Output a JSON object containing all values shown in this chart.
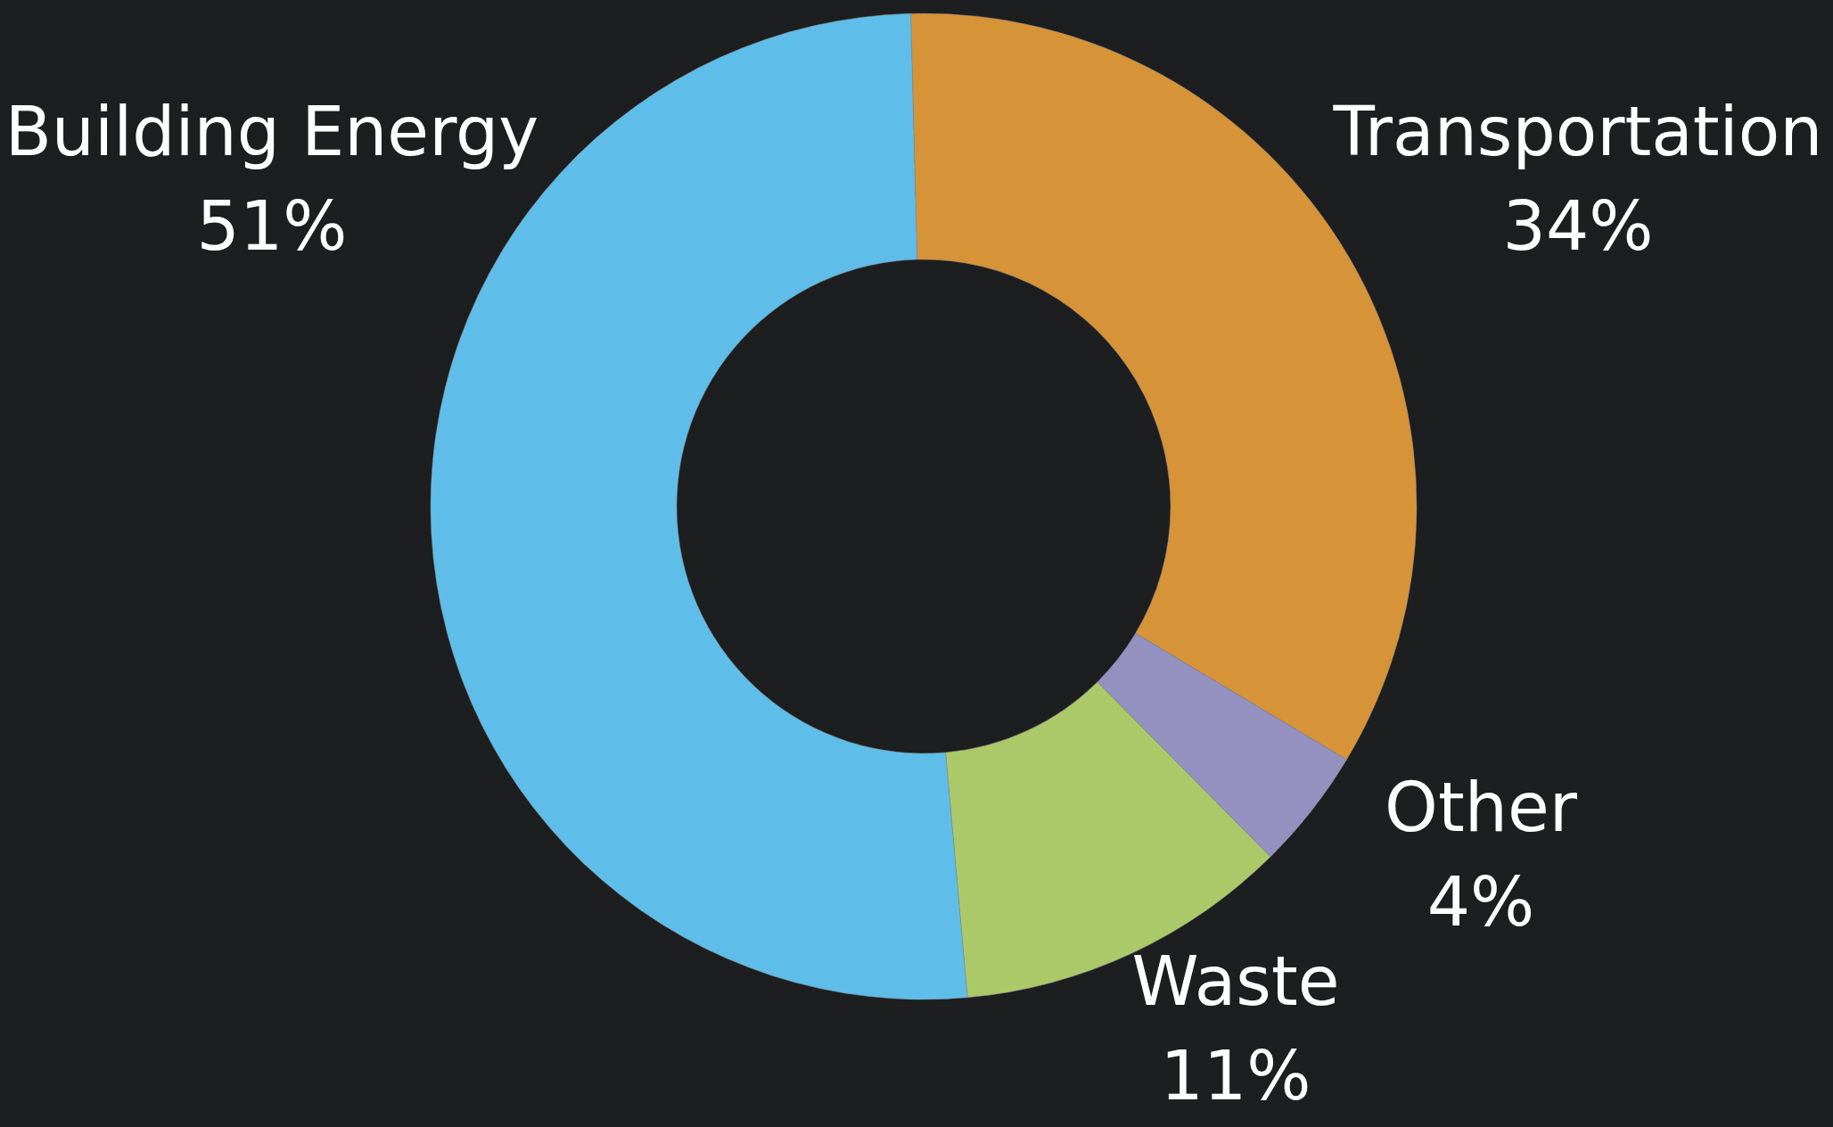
{
  "chart_data": {
    "type": "donut",
    "categories": [
      "Transportation",
      "Other",
      "Waste",
      "Building Energy"
    ],
    "values": [
      34,
      4,
      11,
      51
    ],
    "value_labels": [
      "34%",
      "4%",
      "11%",
      "51%"
    ],
    "colors": [
      "#d79337",
      "#9490c0",
      "#acc96a",
      "#5ebee9"
    ]
  }
}
